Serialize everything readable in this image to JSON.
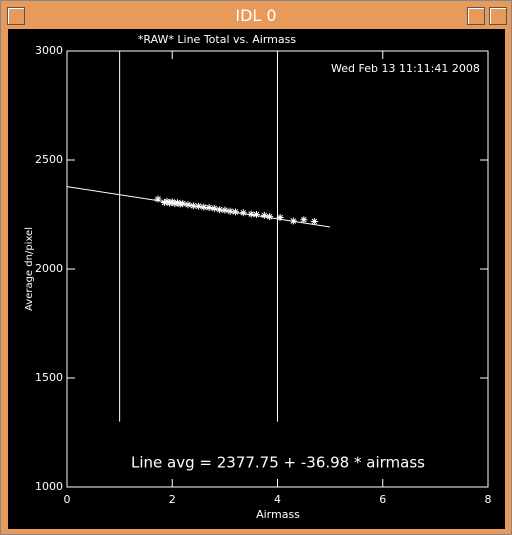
{
  "window": {
    "title": "IDL 0"
  },
  "chart_data": {
    "type": "scatter",
    "title": "*RAW* Line Total vs. Airmass",
    "date": "Wed Feb 13 11:11:41 2008",
    "x_label": "Airmass",
    "y_label": "Average dn/pixel",
    "annotation": "Line avg = 2377.75 + -36.98 * airmass",
    "xlim": [
      0,
      8
    ],
    "xticks": [
      0,
      2,
      4,
      6,
      8
    ],
    "ylim": [
      1000,
      3000
    ],
    "yticks": [
      1000,
      1500,
      2000,
      2500,
      3000
    ],
    "color": "#ffffff",
    "x": [
      1.73,
      1.85,
      1.9,
      1.95,
      2.0,
      2.05,
      2.1,
      2.15,
      2.2,
      2.3,
      2.4,
      2.5,
      2.6,
      2.7,
      2.8,
      2.9,
      3.0,
      3.1,
      3.2,
      3.35,
      3.5,
      3.6,
      3.75,
      3.85,
      4.05,
      4.3,
      4.5,
      4.7
    ],
    "values": [
      2321,
      2305,
      2310,
      2302,
      2308,
      2300,
      2304,
      2298,
      2300,
      2295,
      2290,
      2288,
      2284,
      2282,
      2278,
      2272,
      2270,
      2265,
      2262,
      2258,
      2252,
      2250,
      2246,
      2240,
      2236,
      2220,
      2226,
      2218
    ],
    "fit_line": {
      "x": [
        0,
        5
      ],
      "values": [
        2377.75,
        2192.85
      ]
    },
    "vlines": {
      "x": [
        1,
        4
      ],
      "ylim": [
        1300,
        3000
      ]
    }
  }
}
